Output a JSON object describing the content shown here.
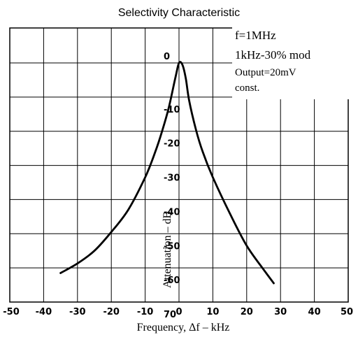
{
  "chart_data": {
    "type": "line",
    "title": "Selectivity Characteristic",
    "xlabel": "Frequency, Δf  –  kHz",
    "ylabel": "Attenuation – dB",
    "xlim": [
      -50,
      50
    ],
    "ylim": [
      0,
      70
    ],
    "x_tick_labels": [
      "-50",
      "-40",
      "-30",
      "-20",
      "-10",
      "0",
      "10",
      "20",
      "30",
      "40",
      "50"
    ],
    "y_tick_labels": [
      "0",
      "-10",
      "-20",
      "-30",
      "-40",
      "-50",
      "-60",
      "70"
    ],
    "y_inverted": true,
    "grid": true,
    "annotations": [
      "f=1MHz",
      "1kHz-30% mod",
      "Output=20mV",
      "const."
    ],
    "series": [
      {
        "x": [
          -35,
          -30,
          -25,
          -20,
          -15,
          -10,
          -7,
          -5,
          -3,
          -1,
          0,
          1,
          2,
          3,
          5,
          7,
          10,
          15,
          20,
          25,
          28
        ],
        "y": [
          61.5,
          58.7,
          55,
          49.5,
          43,
          33.5,
          26,
          20,
          13,
          4,
          0,
          0.5,
          4.5,
          11,
          19.5,
          26,
          33.5,
          44,
          53.5,
          60.5,
          64.5
        ]
      }
    ]
  },
  "colors": {
    "line": "#000000",
    "grid": "#000000",
    "background": "#ffffff"
  }
}
